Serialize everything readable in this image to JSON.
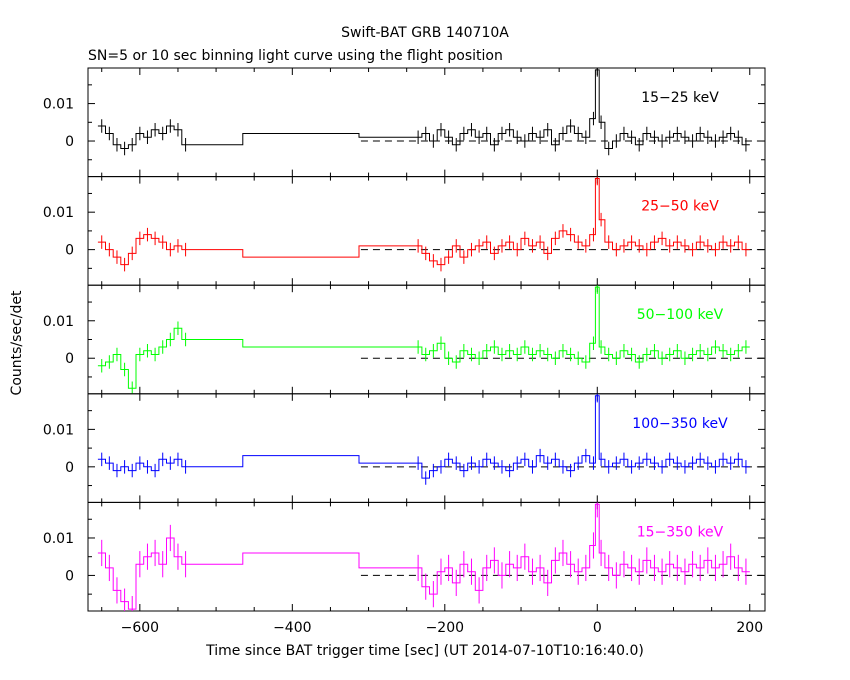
{
  "chart_data": {
    "type": "line",
    "title": "Swift-BAT GRB 140710A",
    "subtitle": "SN=5 or 10 sec binning light curve using the flight position",
    "xlabel": "Time since BAT trigger time [sec] (UT 2014-07-10T10:16:40.0)",
    "ylabel": "Counts/sec/det",
    "xlim": [
      -668,
      220
    ],
    "ylim": [
      -0.0095,
      0.0195
    ],
    "x_ticks": [
      -600,
      -400,
      -200,
      0,
      200
    ],
    "x_tick_labels": [
      "−600",
      "−400",
      "−200",
      "0",
      "200"
    ],
    "y_ticks": [
      0,
      0.01
    ],
    "y_tick_labels": [
      "0",
      "0.01"
    ],
    "grid": false,
    "series": [
      {
        "name": "15−25 keV",
        "color": "#000000",
        "x": [
          -650,
          -640,
          -630,
          -620,
          -610,
          -600,
          -590,
          -580,
          -570,
          -560,
          -550,
          -540,
          -390,
          -235,
          -225,
          -215,
          -205,
          -195,
          -185,
          -175,
          -165,
          -155,
          -145,
          -135,
          -125,
          -115,
          -105,
          -95,
          -85,
          -75,
          -65,
          -55,
          -45,
          -35,
          -25,
          -15,
          -5,
          0,
          5,
          15,
          25,
          35,
          45,
          55,
          65,
          75,
          85,
          95,
          105,
          115,
          125,
          135,
          145,
          155,
          165,
          175,
          185,
          195
        ],
        "y": [
          0.004,
          0.002,
          -0.001,
          -0.002,
          -0.001,
          0.002,
          0.001,
          0.003,
          0.002,
          0.004,
          0.003,
          -0.001,
          0.002,
          0.001,
          0.002,
          0.0,
          0.003,
          0.001,
          -0.001,
          0.002,
          0.003,
          0.001,
          0.002,
          -0.001,
          0.002,
          0.003,
          0.001,
          0.0,
          0.002,
          0.001,
          0.003,
          -0.001,
          0.002,
          0.004,
          0.002,
          0.001,
          0.006,
          0.019,
          0.005,
          -0.002,
          0.0,
          0.002,
          0.001,
          -0.001,
          0.002,
          0.001,
          0.0,
          0.001,
          0.002,
          0.001,
          0.0,
          0.002,
          0.001,
          0.0,
          0.001,
          0.002,
          0.001,
          -0.001
        ],
        "baseline_from": -310
      },
      {
        "name": "25−50 keV",
        "color": "#ff0000",
        "x": [
          -650,
          -640,
          -630,
          -620,
          -610,
          -600,
          -590,
          -580,
          -570,
          -560,
          -550,
          -540,
          -390,
          -235,
          -225,
          -215,
          -205,
          -195,
          -185,
          -175,
          -165,
          -155,
          -145,
          -135,
          -125,
          -115,
          -105,
          -95,
          -85,
          -75,
          -65,
          -55,
          -45,
          -35,
          -25,
          -15,
          -5,
          0,
          5,
          15,
          25,
          35,
          45,
          55,
          65,
          75,
          85,
          95,
          105,
          115,
          125,
          135,
          145,
          155,
          165,
          175,
          185,
          195
        ],
        "y": [
          0.002,
          0.0,
          -0.002,
          -0.004,
          -0.001,
          0.003,
          0.004,
          0.003,
          0.002,
          0.0,
          0.001,
          0.0,
          -0.002,
          0.001,
          -0.001,
          -0.003,
          -0.004,
          -0.002,
          0.001,
          -0.002,
          0.0,
          0.001,
          0.002,
          -0.001,
          0.001,
          0.002,
          0.0,
          0.003,
          0.001,
          0.002,
          -0.001,
          0.003,
          0.005,
          0.004,
          0.002,
          0.001,
          0.004,
          0.019,
          0.008,
          0.002,
          0.0,
          0.001,
          0.002,
          0.001,
          0.0,
          0.002,
          0.003,
          0.001,
          0.002,
          0.001,
          0.0,
          0.002,
          0.001,
          0.0,
          0.002,
          0.001,
          0.002,
          0.0
        ],
        "baseline_from": -310
      },
      {
        "name": "50−100 keV",
        "color": "#00ff00",
        "x": [
          -650,
          -640,
          -630,
          -620,
          -610,
          -600,
          -590,
          -580,
          -570,
          -560,
          -550,
          -540,
          -390,
          -235,
          -225,
          -215,
          -205,
          -195,
          -185,
          -175,
          -165,
          -155,
          -145,
          -135,
          -125,
          -115,
          -105,
          -95,
          -85,
          -75,
          -65,
          -55,
          -45,
          -35,
          -25,
          -15,
          -5,
          0,
          5,
          15,
          25,
          35,
          45,
          55,
          65,
          75,
          85,
          95,
          105,
          115,
          125,
          135,
          145,
          155,
          165,
          175,
          185,
          195
        ],
        "y": [
          -0.002,
          -0.001,
          0.001,
          -0.003,
          -0.008,
          0.001,
          0.002,
          0.001,
          0.003,
          0.005,
          0.008,
          0.005,
          0.003,
          0.003,
          0.001,
          0.002,
          0.004,
          0.0,
          -0.001,
          0.002,
          0.001,
          0.0,
          0.002,
          0.003,
          0.001,
          0.002,
          0.001,
          0.003,
          0.001,
          0.002,
          0.001,
          0.0,
          0.002,
          0.001,
          0.0,
          -0.001,
          0.004,
          0.019,
          0.003,
          0.001,
          0.0,
          0.002,
          0.001,
          -0.001,
          0.001,
          0.002,
          0.0,
          0.001,
          0.002,
          0.0,
          0.001,
          0.002,
          0.001,
          0.003,
          0.002,
          0.001,
          0.002,
          0.003
        ],
        "baseline_from": -310
      },
      {
        "name": "100−350 keV",
        "color": "#0000ff",
        "x": [
          -650,
          -640,
          -630,
          -620,
          -610,
          -600,
          -590,
          -580,
          -570,
          -560,
          -550,
          -540,
          -390,
          -235,
          -225,
          -215,
          -205,
          -195,
          -185,
          -175,
          -165,
          -155,
          -145,
          -135,
          -125,
          -115,
          -105,
          -95,
          -85,
          -75,
          -65,
          -55,
          -45,
          -35,
          -25,
          -15,
          -5,
          0,
          5,
          15,
          25,
          35,
          45,
          55,
          65,
          75,
          85,
          95,
          105,
          115,
          125,
          135,
          145,
          155,
          165,
          175,
          185,
          195
        ],
        "y": [
          0.002,
          0.001,
          -0.001,
          0.0,
          -0.001,
          0.001,
          0.0,
          -0.001,
          0.002,
          0.001,
          0.002,
          0.0,
          0.003,
          0.001,
          -0.003,
          -0.001,
          0.0,
          0.002,
          0.001,
          -0.001,
          0.001,
          0.0,
          0.002,
          0.001,
          0.0,
          -0.001,
          0.001,
          0.002,
          0.0,
          0.003,
          0.001,
          0.002,
          0.0,
          -0.001,
          0.001,
          0.003,
          0.001,
          0.019,
          0.002,
          0.0,
          0.001,
          0.002,
          0.0,
          0.001,
          0.002,
          0.001,
          0.0,
          0.002,
          0.001,
          0.0,
          0.001,
          0.002,
          0.001,
          0.0,
          0.002,
          0.001,
          0.002,
          0.0
        ],
        "baseline_from": -310
      },
      {
        "name": "15−350 keV",
        "color": "#ff00ff",
        "x": [
          -650,
          -640,
          -630,
          -620,
          -610,
          -600,
          -590,
          -580,
          -570,
          -560,
          -550,
          -540,
          -390,
          -235,
          -225,
          -215,
          -205,
          -195,
          -185,
          -175,
          -165,
          -155,
          -145,
          -135,
          -125,
          -115,
          -105,
          -95,
          -85,
          -75,
          -65,
          -55,
          -45,
          -35,
          -25,
          -15,
          -5,
          0,
          5,
          15,
          25,
          35,
          45,
          55,
          65,
          75,
          85,
          95,
          105,
          115,
          125,
          135,
          145,
          155,
          165,
          175,
          185,
          195
        ],
        "y": [
          0.006,
          0.002,
          -0.004,
          -0.007,
          -0.009,
          0.003,
          0.005,
          0.006,
          0.003,
          0.01,
          0.005,
          0.003,
          0.006,
          0.002,
          -0.003,
          -0.005,
          0.001,
          0.002,
          -0.002,
          0.003,
          0.001,
          -0.004,
          0.002,
          0.004,
          0.0,
          0.003,
          0.002,
          0.005,
          0.001,
          0.002,
          -0.002,
          0.004,
          0.006,
          0.003,
          0.001,
          0.002,
          0.008,
          0.019,
          0.006,
          0.002,
          0.0,
          0.003,
          0.002,
          0.001,
          0.004,
          0.002,
          0.001,
          0.003,
          0.002,
          0.001,
          0.003,
          0.002,
          0.004,
          0.002,
          0.003,
          0.005,
          0.002,
          0.001
        ],
        "baseline_from": -310
      }
    ]
  }
}
